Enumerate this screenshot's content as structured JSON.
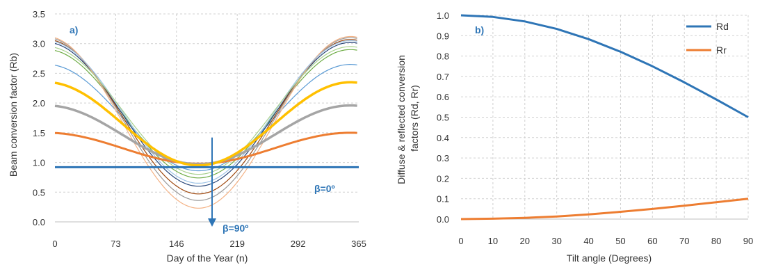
{
  "chart_data": [
    {
      "type": "line",
      "panel_label": "a)",
      "xlabel": "Day of the Year (n)",
      "ylabel": "Beam conversion factor (Rb)",
      "xlim": [
        0,
        365
      ],
      "ylim": [
        0,
        3.5
      ],
      "xticks": [
        0,
        73,
        146,
        219,
        292,
        365
      ],
      "yticks": [
        "0.0",
        "0.5",
        "1.0",
        "1.5",
        "2.0",
        "2.5",
        "3.0",
        "3.5"
      ],
      "grid": true,
      "annotations": [
        {
          "text": "β=0º"
        },
        {
          "text": "β=90º"
        }
      ],
      "series": [
        {
          "color": "#2e75b6",
          "peak": 0.92,
          "trough": 0.92,
          "width": 3
        },
        {
          "color": "#ed7d31",
          "peak": 1.5,
          "trough": 0.98,
          "width": 3
        },
        {
          "color": "#a5a5a5",
          "peak": 1.96,
          "trough": 0.97,
          "width": 3.5
        },
        {
          "color": "#ffc000",
          "peak": 2.35,
          "trough": 0.95,
          "width": 3.5
        },
        {
          "color": "#5b9bd5",
          "peak": 2.65,
          "trough": 0.86,
          "width": 1.2
        },
        {
          "color": "#70ad47",
          "peak": 2.9,
          "trough": 0.74,
          "width": 1.2
        },
        {
          "color": "#264478",
          "peak": 3.02,
          "trough": 0.6,
          "width": 1.2
        },
        {
          "color": "#9e480e",
          "peak": 3.07,
          "trough": 0.47,
          "width": 1.2
        },
        {
          "color": "#999999",
          "peak": 3.1,
          "trough": 0.36,
          "width": 1.2
        },
        {
          "color": "#f4b183",
          "peak": 3.12,
          "trough": 0.23,
          "width": 1.2
        },
        {
          "color": "#9dc3e6",
          "peak": 3.05,
          "trough": 0.65,
          "width": 1.2
        },
        {
          "color": "#a9d18e",
          "peak": 2.95,
          "trough": 0.8,
          "width": 1.2
        }
      ]
    },
    {
      "type": "line",
      "panel_label": "b)",
      "xlabel": "Tilt angle (Degrees)",
      "ylabel": "Diffuse & reflected conversion factors (Rd, Rr)",
      "ylabel_lines": [
        "Diffuse & reflected conversion",
        "factors (Rd, Rr)"
      ],
      "xlim": [
        0,
        90
      ],
      "ylim": [
        0,
        1
      ],
      "xticks": [
        0,
        10,
        20,
        30,
        40,
        50,
        60,
        70,
        80,
        90
      ],
      "yticks": [
        "0.0",
        "0.1",
        "0.2",
        "0.3",
        "0.4",
        "0.5",
        "0.6",
        "0.7",
        "0.8",
        "0.9",
        "1.0"
      ],
      "grid": true,
      "legend_position": "top-right",
      "x": [
        0,
        10,
        20,
        30,
        40,
        50,
        60,
        70,
        80,
        90
      ],
      "series": [
        {
          "name": "Rd",
          "color": "#2e75b6",
          "values": [
            1.0,
            0.992,
            0.97,
            0.933,
            0.883,
            0.821,
            0.75,
            0.671,
            0.587,
            0.5
          ]
        },
        {
          "name": "Rr",
          "color": "#ed7d31",
          "values": [
            0.0,
            0.002,
            0.006,
            0.013,
            0.023,
            0.036,
            0.05,
            0.066,
            0.083,
            0.1
          ]
        }
      ]
    }
  ]
}
